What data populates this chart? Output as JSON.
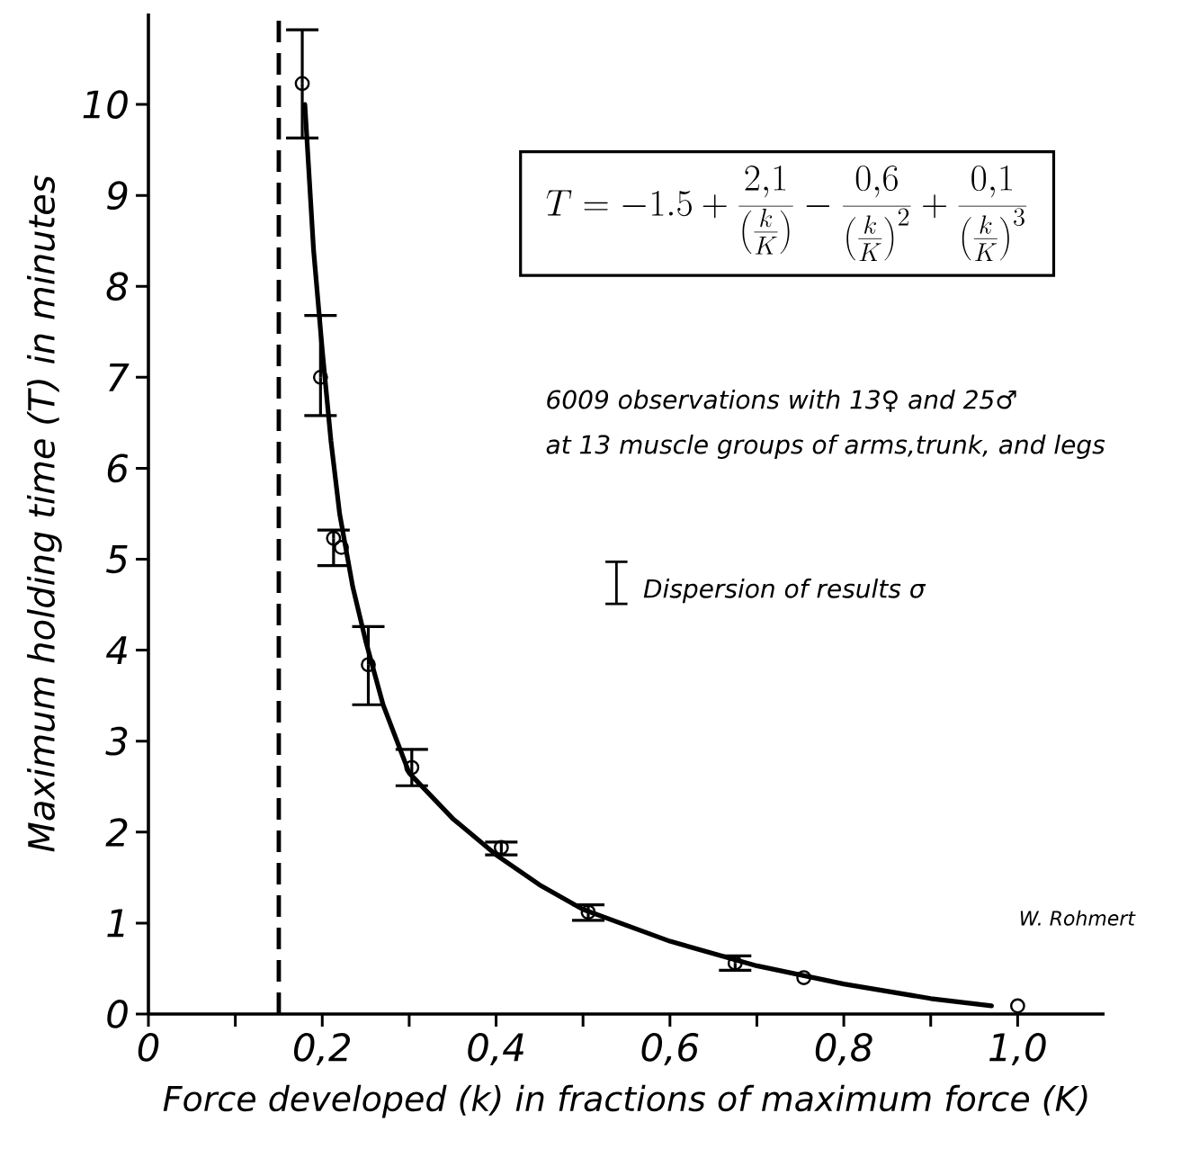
{
  "chart_data": {
    "type": "line",
    "xlabel": "Force developed (k) in fractions of maximum force (K)",
    "ylabel": "Maximum holding time (T) in minutes",
    "xlim": [
      0,
      1.1
    ],
    "ylim": [
      0,
      11
    ],
    "xticks": [
      {
        "value": 0,
        "label": "0"
      },
      {
        "value": 0.1,
        "label": null
      },
      {
        "value": 0.2,
        "label": "0,2"
      },
      {
        "value": 0.3,
        "label": null
      },
      {
        "value": 0.4,
        "label": "0,4"
      },
      {
        "value": 0.5,
        "label": null
      },
      {
        "value": 0.6,
        "label": "0,6"
      },
      {
        "value": 0.7,
        "label": null
      },
      {
        "value": 0.8,
        "label": "0,8"
      },
      {
        "value": 0.9,
        "label": null
      },
      {
        "value": 1.0,
        "label": "1,0"
      }
    ],
    "yticks": [
      0,
      1,
      2,
      3,
      4,
      5,
      6,
      7,
      8,
      9,
      10
    ],
    "series": [
      {
        "color": "#000000",
        "x": [
          0.18,
          0.19,
          0.2,
          0.21,
          0.22,
          0.235,
          0.25,
          0.27,
          0.3,
          0.35,
          0.4,
          0.45,
          0.5,
          0.6,
          0.7,
          0.8,
          0.9,
          0.97
        ],
        "values": [
          10.0,
          8.4,
          7.3,
          6.3,
          5.5,
          4.7,
          4.1,
          3.4,
          2.65,
          2.15,
          1.75,
          1.42,
          1.15,
          0.8,
          0.53,
          0.33,
          0.17,
          0.09
        ]
      },
      {
        "type": "scatter",
        "color": "#000000",
        "marker": "circle",
        "x": [
          0.177,
          0.198,
          0.213,
          0.222,
          0.253,
          0.303,
          0.406,
          0.506,
          0.675,
          0.754,
          1.0
        ],
        "values": [
          10.23,
          7.0,
          5.23,
          5.13,
          3.84,
          2.71,
          1.83,
          1.12,
          0.56,
          0.4,
          0.09
        ],
        "errors": [
          [
            9.63,
            10.82
          ],
          [
            6.58,
            7.68
          ],
          [
            4.93,
            5.32
          ],
          null,
          [
            3.4,
            4.26
          ],
          [
            2.51,
            2.91
          ],
          [
            1.75,
            1.89
          ],
          [
            1.03,
            1.2
          ],
          [
            0.48,
            0.64
          ],
          null,
          null
        ]
      }
    ],
    "ref_lines": [
      {
        "axis": "x",
        "value": 0.15,
        "line_style": "dashed"
      }
    ],
    "annotations": [
      "T = -1.5 + \\frac{2{,}1}{\\left(\\frac{k}{K}\\right)} - \\frac{0{,}6}{\\left(\\frac{k}{K}\\right)^{2}} + \\frac{0{,}1}{\\left(\\frac{k}{K}\\right)^{3}}",
      "6009 observations with 13♀ and 25♂",
      "at 13 muscle groups of arms,trunk, and legs",
      "Dispersion of results σ",
      "W. Rohmert"
    ]
  }
}
